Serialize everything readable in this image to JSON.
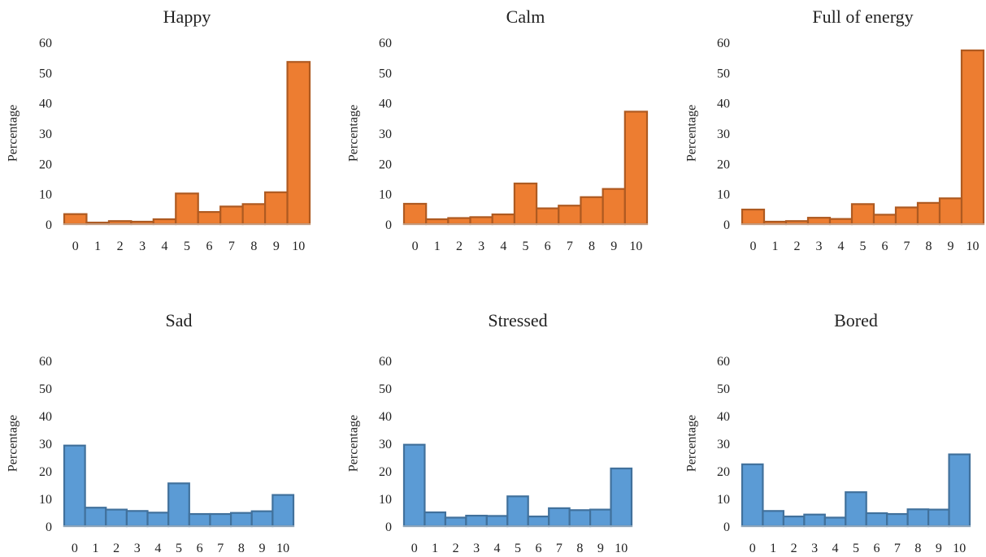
{
  "chart_data": [
    {
      "type": "bar",
      "title": "Happy",
      "ylabel": "Percentage",
      "xlabel": "",
      "categories": [
        "0",
        "1",
        "2",
        "3",
        "4",
        "5",
        "6",
        "7",
        "8",
        "9",
        "10"
      ],
      "values": [
        3.3,
        0.5,
        1.0,
        0.8,
        1.6,
        10.1,
        4.0,
        5.8,
        6.6,
        10.5,
        53.5
      ],
      "ylim": [
        0,
        60
      ],
      "yticks": [
        0,
        10,
        20,
        30,
        40,
        50,
        60
      ],
      "color": "#ED7D31",
      "edge_color": "#AE5A21",
      "grid": false
    },
    {
      "type": "bar",
      "title": "Calm",
      "ylabel": "Percentage",
      "xlabel": "",
      "categories": [
        "0",
        "1",
        "2",
        "3",
        "4",
        "5",
        "6",
        "7",
        "8",
        "9",
        "10"
      ],
      "values": [
        6.7,
        1.6,
        2.0,
        2.3,
        3.2,
        13.4,
        5.2,
        6.1,
        8.9,
        11.6,
        37.1
      ],
      "ylim": [
        0,
        60
      ],
      "yticks": [
        0,
        10,
        20,
        30,
        40,
        50,
        60
      ],
      "color": "#ED7D31",
      "edge_color": "#AE5A21",
      "grid": false
    },
    {
      "type": "bar",
      "title": "Full of energy",
      "ylabel": "Percentage",
      "xlabel": "",
      "categories": [
        "0",
        "1",
        "2",
        "3",
        "4",
        "5",
        "6",
        "7",
        "8",
        "9",
        "10"
      ],
      "values": [
        4.8,
        0.8,
        1.0,
        2.1,
        1.7,
        6.6,
        3.1,
        5.5,
        7.0,
        8.5,
        57.3
      ],
      "ylim": [
        0,
        60
      ],
      "yticks": [
        0,
        10,
        20,
        30,
        40,
        50,
        60
      ],
      "color": "#ED7D31",
      "edge_color": "#AE5A21",
      "grid": false
    },
    {
      "type": "bar",
      "title": "Sad",
      "ylabel": "Percentage",
      "xlabel": "",
      "categories": [
        "0",
        "1",
        "2",
        "3",
        "4",
        "5",
        "6",
        "7",
        "8",
        "9",
        "10"
      ],
      "values": [
        29.2,
        6.7,
        6.0,
        5.5,
        4.9,
        15.5,
        4.4,
        4.4,
        4.8,
        5.4,
        11.3
      ],
      "ylim": [
        0,
        60
      ],
      "yticks": [
        0,
        10,
        20,
        30,
        40,
        50,
        60
      ],
      "color": "#5B9BD5",
      "edge_color": "#41719C",
      "grid": false
    },
    {
      "type": "bar",
      "title": "Stressed",
      "ylabel": "Percentage",
      "xlabel": "",
      "categories": [
        "0",
        "1",
        "2",
        "3",
        "4",
        "5",
        "6",
        "7",
        "8",
        "9",
        "10"
      ],
      "values": [
        29.5,
        5.0,
        3.1,
        3.8,
        3.7,
        10.8,
        3.5,
        6.5,
        5.8,
        6.0,
        20.9
      ],
      "ylim": [
        0,
        60
      ],
      "yticks": [
        0,
        10,
        20,
        30,
        40,
        50,
        60
      ],
      "color": "#5B9BD5",
      "edge_color": "#41719C",
      "grid": false
    },
    {
      "type": "bar",
      "title": "Bored",
      "ylabel": "Percentage",
      "xlabel": "",
      "categories": [
        "0",
        "1",
        "2",
        "3",
        "4",
        "5",
        "6",
        "7",
        "8",
        "9",
        "10"
      ],
      "values": [
        22.4,
        5.5,
        3.5,
        4.2,
        3.1,
        12.3,
        4.7,
        4.4,
        6.1,
        6.0,
        26.0
      ],
      "ylim": [
        0,
        60
      ],
      "yticks": [
        0,
        10,
        20,
        30,
        40,
        50,
        60
      ],
      "color": "#5B9BD5",
      "edge_color": "#41719C",
      "grid": false
    }
  ]
}
